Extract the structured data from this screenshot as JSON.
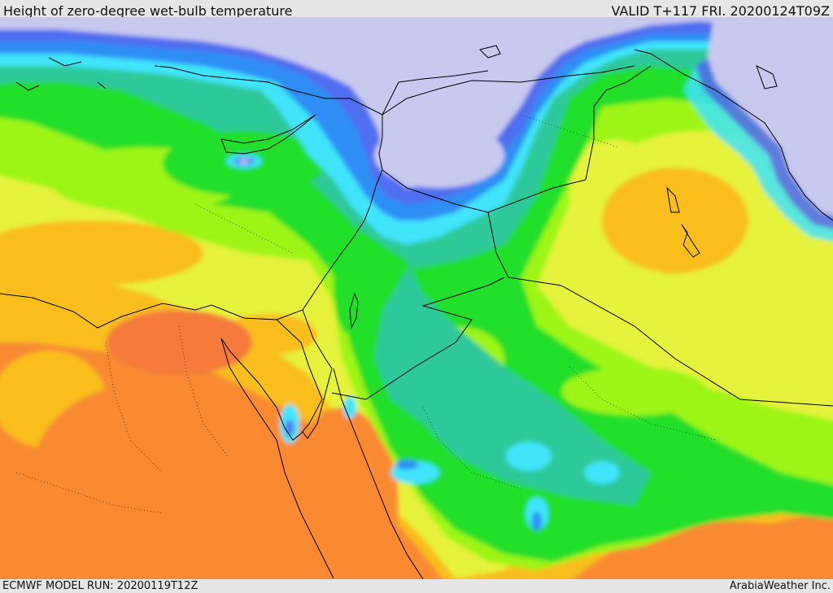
{
  "header": {
    "title": "Height of zero-degree wet-bulb temperature",
    "valid": "VALID T+117 FRI. 20200124T09Z"
  },
  "footer": {
    "model_run": "ECMWF MODEL RUN: 20200119T12Z",
    "credit": "ArabiaWeather Inc."
  },
  "colors": {
    "lowest": "#c8c9ee",
    "royal_blue": "#4f6ef0",
    "blue": "#2f8ef5",
    "cyan": "#3fe4fb",
    "teal": "#2ec99a",
    "green": "#22df2a",
    "lime": "#9df518",
    "yellow": "#e6f23a",
    "gold": "#f9be1d",
    "orange": "#f98a30",
    "deep_orange": "#f57a3a",
    "border_line": "#000000"
  }
}
